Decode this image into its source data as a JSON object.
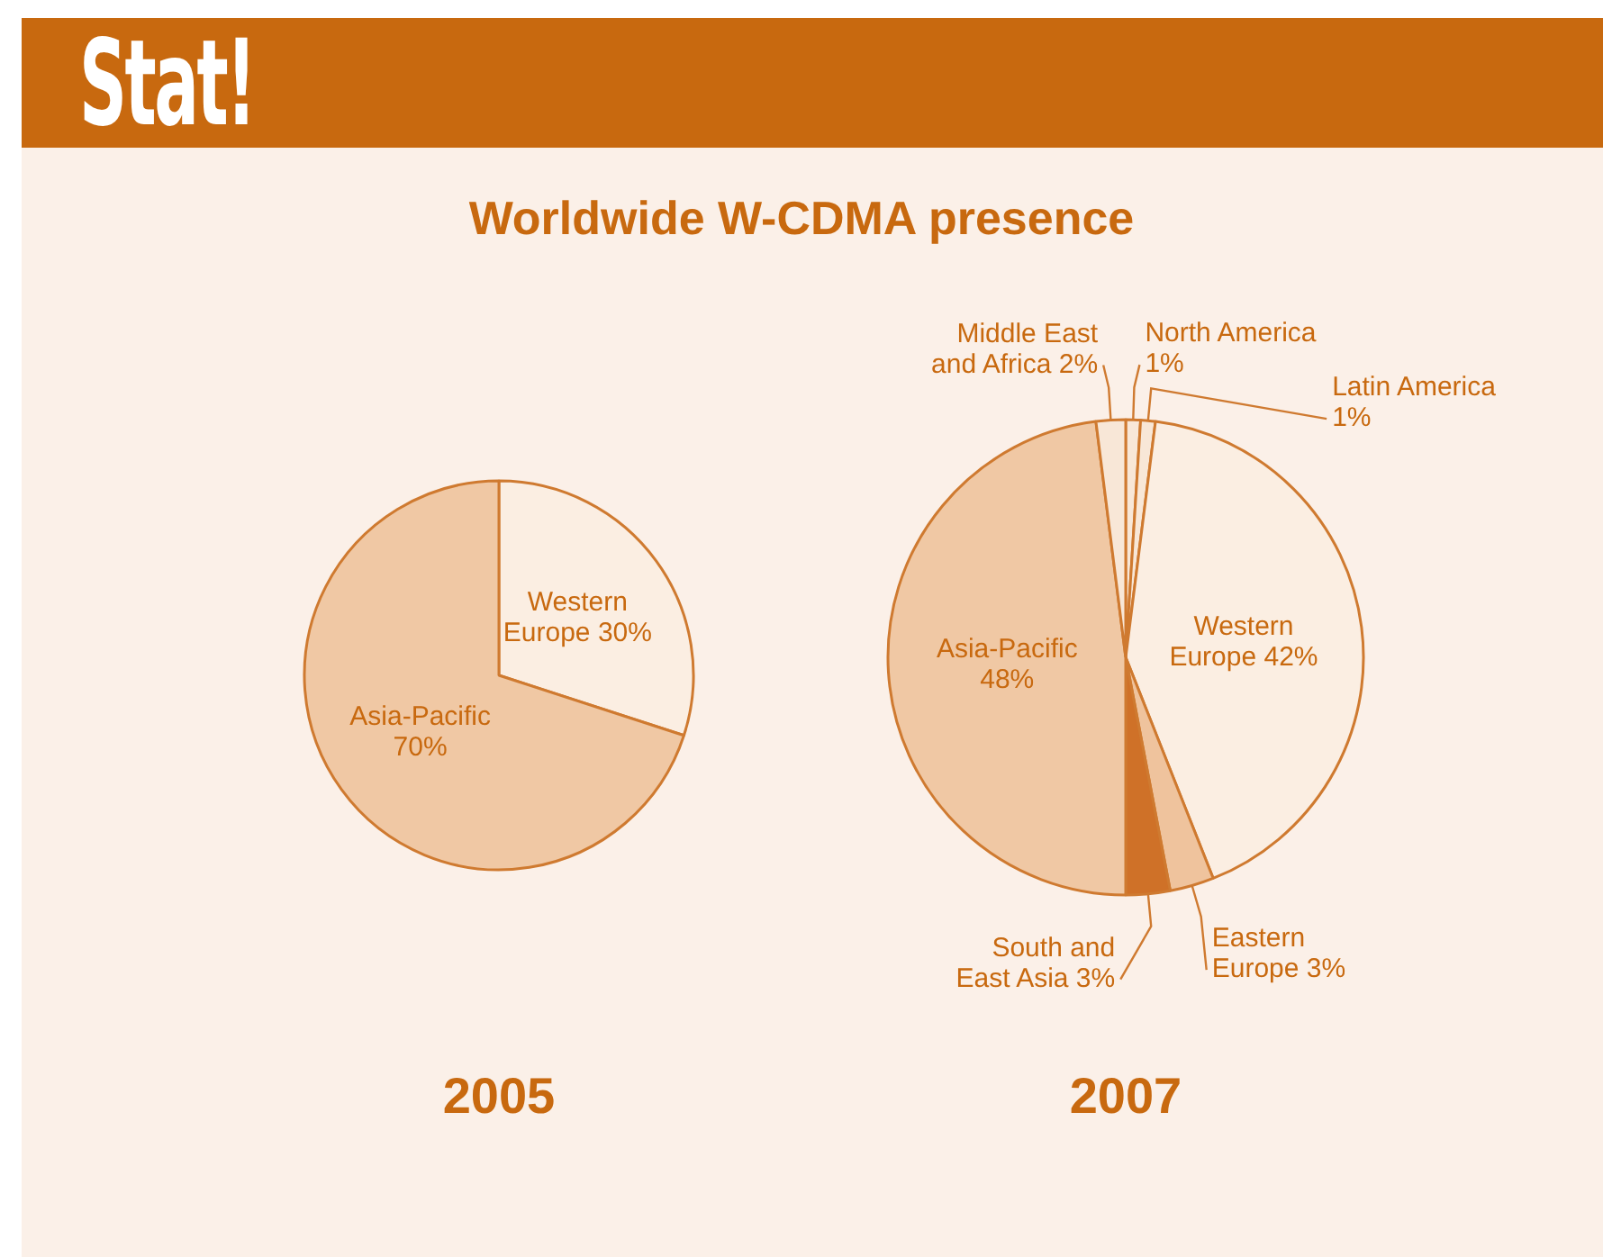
{
  "chart_data": [
    {
      "type": "other",
      "title": "Worldwide W-CDMA presence",
      "annotations": [
        "Stat!"
      ]
    },
    {
      "type": "pie",
      "title": "2005",
      "categories": [
        "Western Europe",
        "Asia-Pacific"
      ],
      "values": [
        30,
        70
      ],
      "value_labels": [
        "30%",
        "70%"
      ],
      "colors": [
        "#fbeee2",
        "#f0c8a4"
      ]
    },
    {
      "type": "pie",
      "title": "2007",
      "categories": [
        "North America",
        "Latin America",
        "Western Europe",
        "Eastern Europe",
        "South and East Asia",
        "Asia-Pacific",
        "Middle East and Africa"
      ],
      "values": [
        1,
        1,
        42,
        3,
        3,
        48,
        2
      ],
      "value_labels": [
        "1%",
        "1%",
        "42%",
        "3%",
        "3%",
        "48%",
        "2%"
      ],
      "colors": [
        "#f8e7d7",
        "#f8e7d7",
        "#fbeee2",
        "#efc39d",
        "#cf7128",
        "#f0c8a4",
        "#f8e7d7"
      ]
    }
  ]
}
